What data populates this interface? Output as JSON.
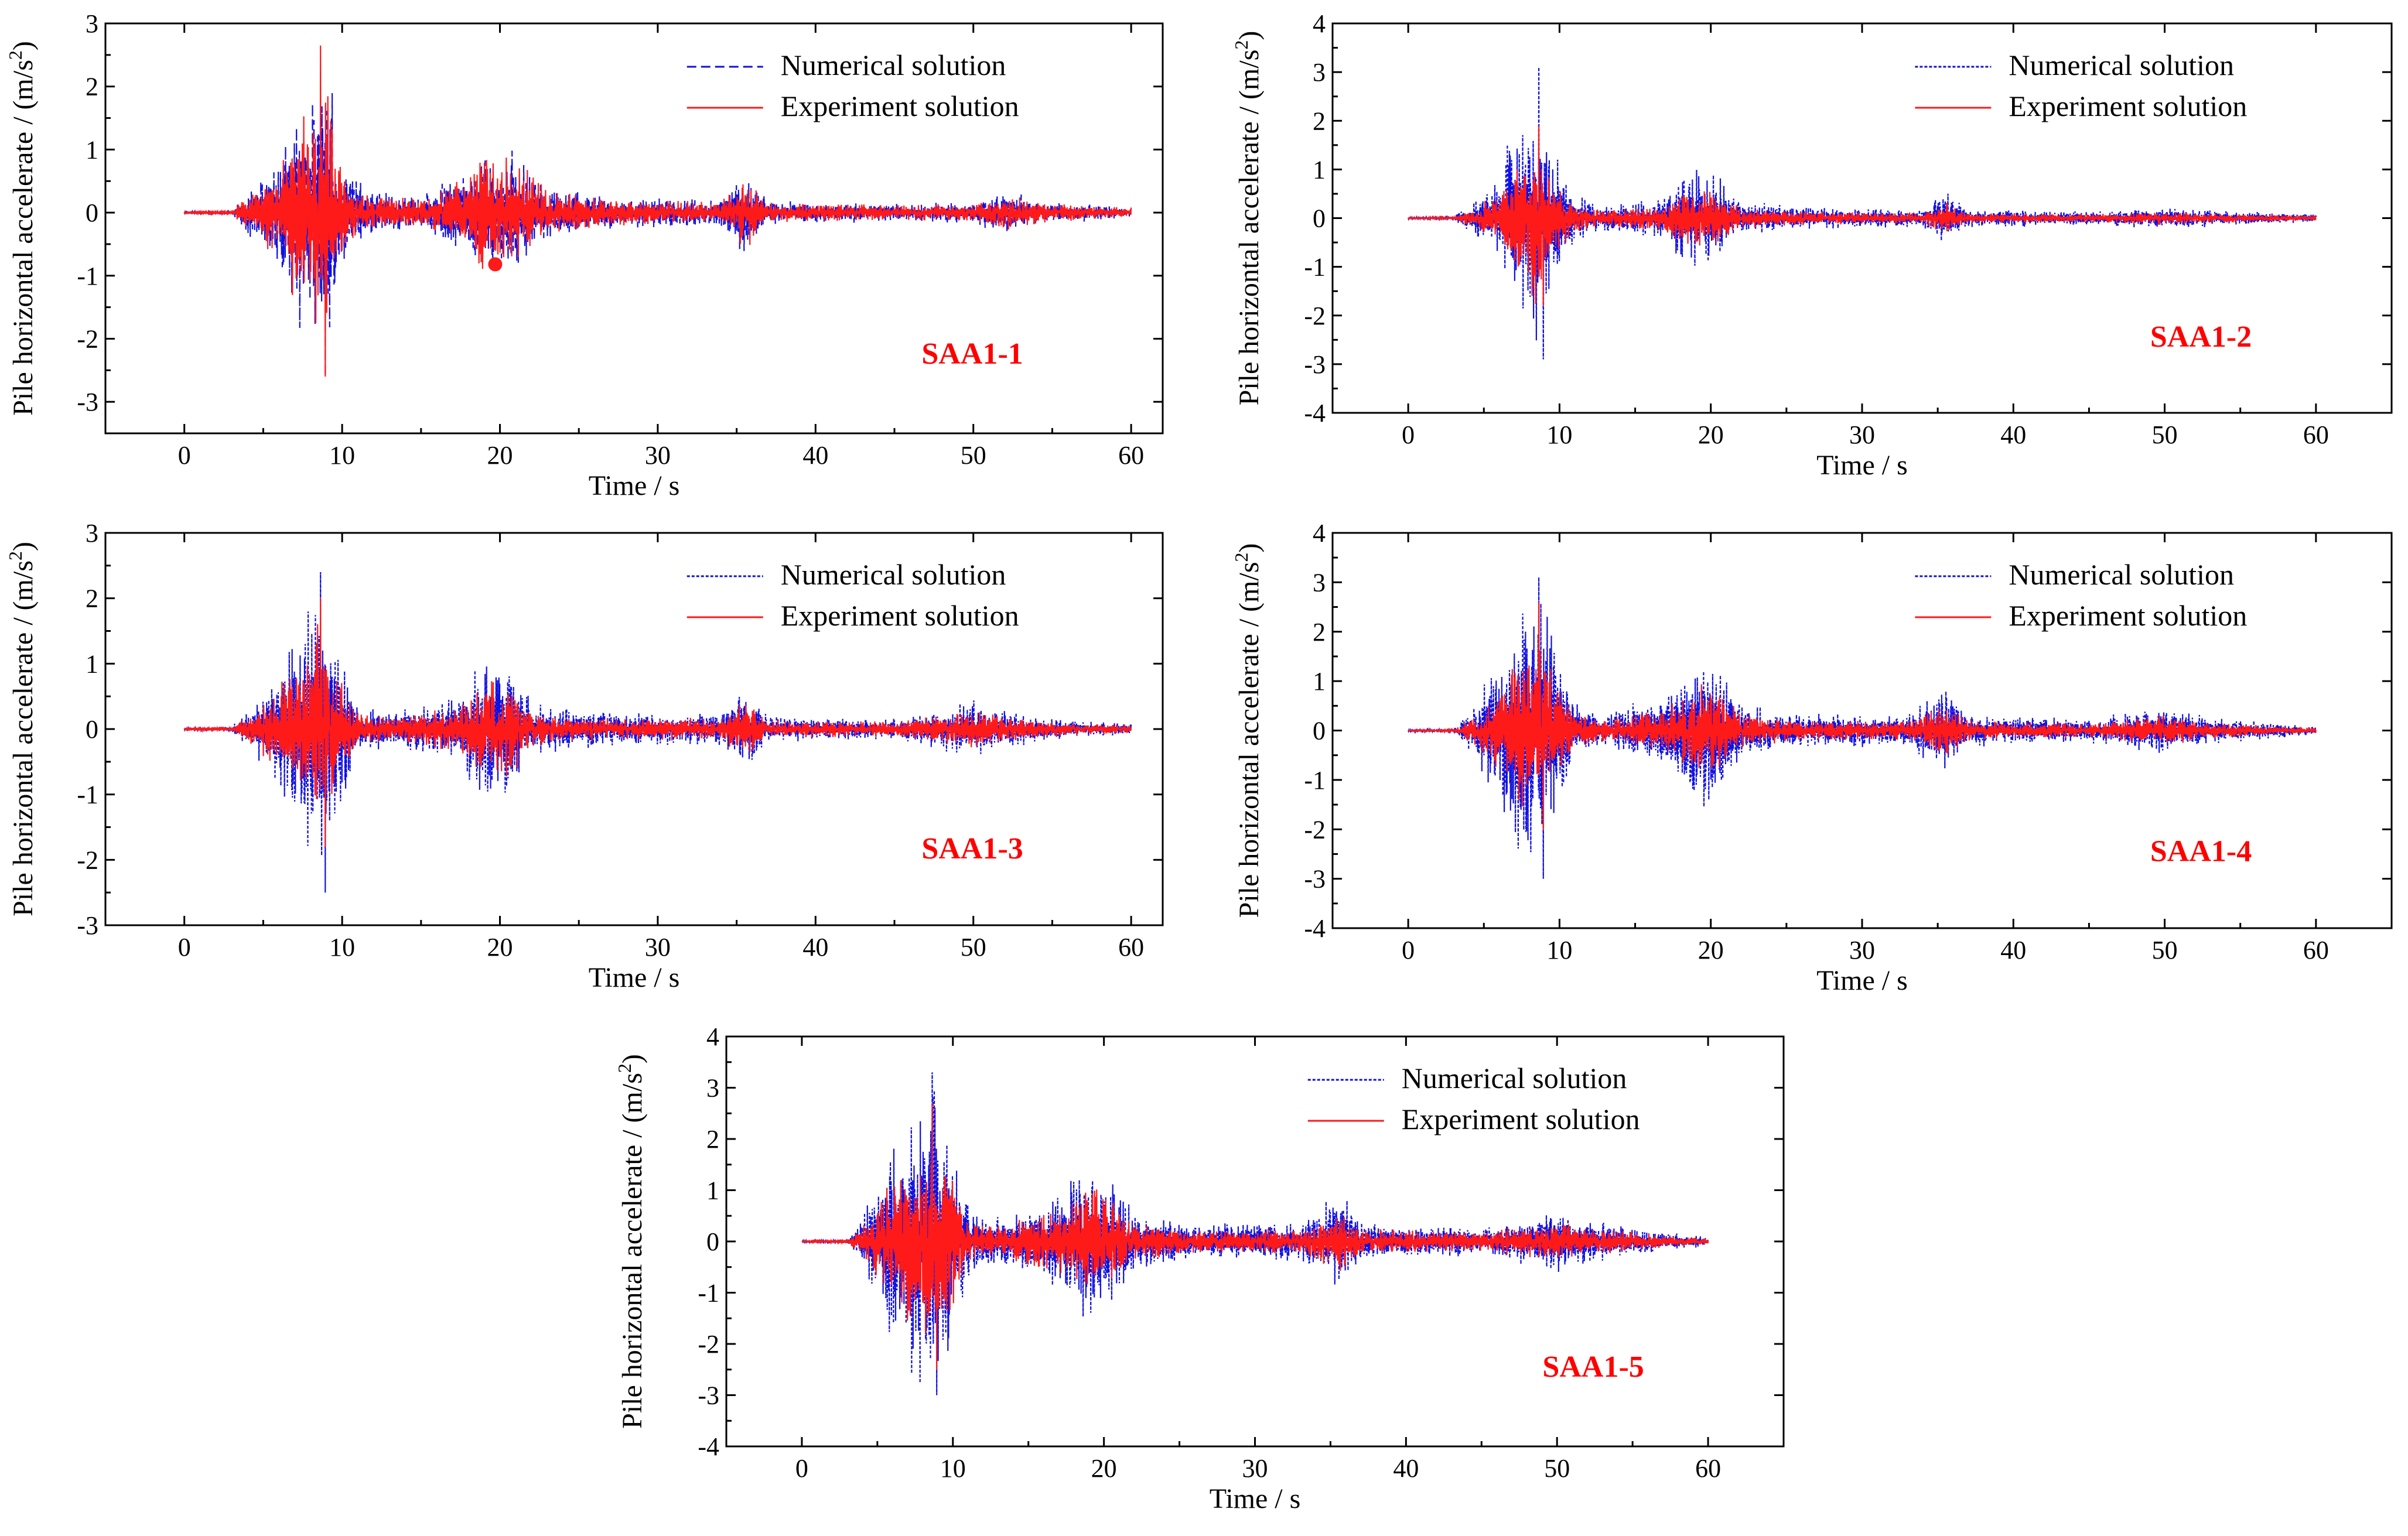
{
  "colors": {
    "numerical": "#1010e0",
    "experiment": "#ff1a1a",
    "label": "#ff0000",
    "axis": "#000000"
  },
  "legend": {
    "numerical": "Numerical solution",
    "experiment": "Experiment solution"
  },
  "chart_data": [
    {
      "type": "line",
      "panel_label": "SAA1-1",
      "xlabel": "Time / s",
      "ylabel_main": "Pile horizontal accelerate / (m/s",
      "ylabel_sup": "2",
      "ylabel_close": ")",
      "xlim": [
        -5,
        62
      ],
      "ylim": [
        -3.5,
        3
      ],
      "xticks": [
        0,
        10,
        20,
        30,
        40,
        50,
        60
      ],
      "yticks": [
        -3,
        -2,
        -1,
        0,
        1,
        2,
        3
      ],
      "numerical_dash": "dashed",
      "envelope": [
        [
          0,
          0.02
        ],
        [
          3,
          0.03
        ],
        [
          4,
          0.35
        ],
        [
          6,
          0.9
        ],
        [
          7,
          2.0
        ],
        [
          8,
          1.9
        ],
        [
          9,
          2.6
        ],
        [
          10,
          0.8
        ],
        [
          12,
          0.35
        ],
        [
          15,
          0.3
        ],
        [
          18,
          0.7
        ],
        [
          19,
          1.2
        ],
        [
          20,
          1.0
        ],
        [
          21,
          1.1
        ],
        [
          23,
          0.45
        ],
        [
          26,
          0.3
        ],
        [
          30,
          0.25
        ],
        [
          34,
          0.22
        ],
        [
          35.5,
          0.75
        ],
        [
          37,
          0.2
        ],
        [
          45,
          0.15
        ],
        [
          50,
          0.18
        ],
        [
          52,
          0.35
        ],
        [
          55,
          0.18
        ],
        [
          60,
          0.1
        ]
      ],
      "ratio": 0.85,
      "marker": {
        "x": 19.7,
        "y": -0.82
      },
      "series": [
        {
          "name": "Numerical solution",
          "peak_max": 2.0,
          "peak_min": -2.6
        },
        {
          "name": "Experiment solution",
          "peak_max": 2.65,
          "peak_min": -2.6
        }
      ]
    },
    {
      "type": "line",
      "panel_label": "SAA1-2",
      "xlabel": "Time / s",
      "ylabel_main": "Pile horizontal accelerate / (m/s",
      "ylabel_sup": "2",
      "ylabel_close": ")",
      "xlim": [
        -5,
        65
      ],
      "ylim": [
        -4,
        4
      ],
      "xticks": [
        0,
        10,
        20,
        30,
        40,
        50,
        60
      ],
      "yticks": [
        -4,
        -3,
        -2,
        -1,
        0,
        1,
        2,
        3,
        4
      ],
      "numerical_dash": "dotted",
      "envelope": [
        [
          0,
          0.02
        ],
        [
          3,
          0.04
        ],
        [
          4,
          0.3
        ],
        [
          6,
          1.0
        ],
        [
          7.5,
          2.5
        ],
        [
          8.5,
          3.1
        ],
        [
          9.5,
          1.5
        ],
        [
          11,
          0.5
        ],
        [
          13,
          0.3
        ],
        [
          17,
          0.45
        ],
        [
          18,
          1.0
        ],
        [
          20,
          1.1
        ],
        [
          22,
          0.4
        ],
        [
          26,
          0.25
        ],
        [
          34,
          0.2
        ],
        [
          35.5,
          0.6
        ],
        [
          37,
          0.2
        ],
        [
          45,
          0.15
        ],
        [
          50,
          0.25
        ],
        [
          55,
          0.15
        ],
        [
          60,
          0.1
        ]
      ],
      "ratio": 0.6,
      "series": [
        {
          "name": "Numerical solution",
          "peak_max": 3.1,
          "peak_min": -2.9
        },
        {
          "name": "Experiment solution",
          "peak_max": 1.9,
          "peak_min": -1.8
        }
      ]
    },
    {
      "type": "line",
      "panel_label": "SAA1-3",
      "xlabel": "Time / s",
      "ylabel_main": "Pile horizontal accelerate / (m/s",
      "ylabel_sup": "2",
      "ylabel_close": ")",
      "xlim": [
        -5,
        62
      ],
      "ylim": [
        -3,
        3
      ],
      "xticks": [
        0,
        10,
        20,
        30,
        40,
        50,
        60
      ],
      "yticks": [
        -3,
        -2,
        -1,
        0,
        1,
        2,
        3
      ],
      "numerical_dash": "dotted",
      "envelope": [
        [
          0,
          0.02
        ],
        [
          3,
          0.04
        ],
        [
          4,
          0.3
        ],
        [
          6,
          1.0
        ],
        [
          7.5,
          1.9
        ],
        [
          8.5,
          2.4
        ],
        [
          9.5,
          1.6
        ],
        [
          11,
          0.4
        ],
        [
          13,
          0.3
        ],
        [
          17,
          0.5
        ],
        [
          18.5,
          1.0
        ],
        [
          20,
          1.2
        ],
        [
          21,
          1.0
        ],
        [
          22,
          0.4
        ],
        [
          26,
          0.3
        ],
        [
          34,
          0.25
        ],
        [
          35.5,
          0.7
        ],
        [
          37,
          0.2
        ],
        [
          45,
          0.18
        ],
        [
          50,
          0.45
        ],
        [
          52,
          0.3
        ],
        [
          56,
          0.15
        ],
        [
          60,
          0.1
        ]
      ],
      "ratio": 0.7,
      "series": [
        {
          "name": "Numerical solution",
          "peak_max": 2.4,
          "peak_min": -2.5
        },
        {
          "name": "Experiment solution",
          "peak_max": 2.0,
          "peak_min": -1.8
        }
      ]
    },
    {
      "type": "line",
      "panel_label": "SAA1-4",
      "xlabel": "Time / s",
      "ylabel_main": "Pile horizontal accelerate / (m/s",
      "ylabel_sup": "2",
      "ylabel_close": ")",
      "xlim": [
        -5,
        65
      ],
      "ylim": [
        -4,
        4
      ],
      "xticks": [
        0,
        10,
        20,
        30,
        40,
        50,
        60
      ],
      "yticks": [
        -4,
        -3,
        -2,
        -1,
        0,
        1,
        2,
        3,
        4
      ],
      "numerical_dash": "dotted",
      "envelope": [
        [
          0,
          0.02
        ],
        [
          3,
          0.04
        ],
        [
          4,
          0.4
        ],
        [
          6,
          1.5
        ],
        [
          7.5,
          2.8
        ],
        [
          8.5,
          3.0
        ],
        [
          9.5,
          2.6
        ],
        [
          11,
          0.6
        ],
        [
          13,
          0.4
        ],
        [
          17,
          0.8
        ],
        [
          19,
          1.6
        ],
        [
          20.5,
          1.7
        ],
        [
          22,
          0.6
        ],
        [
          26,
          0.35
        ],
        [
          33,
          0.35
        ],
        [
          35.5,
          1.0
        ],
        [
          37,
          0.35
        ],
        [
          45,
          0.25
        ],
        [
          50,
          0.55
        ],
        [
          52,
          0.35
        ],
        [
          56,
          0.2
        ],
        [
          60,
          0.1
        ]
      ],
      "ratio": 0.6,
      "series": [
        {
          "name": "Numerical solution",
          "peak_max": 3.1,
          "peak_min": -3.0
        },
        {
          "name": "Experiment solution",
          "peak_max": 2.6,
          "peak_min": -2.0
        }
      ]
    },
    {
      "type": "line",
      "panel_label": "SAA1-5",
      "xlabel": "Time / s",
      "ylabel_main": "Pile horizontal accelerate / (m/s",
      "ylabel_sup": "2",
      "ylabel_close": ")",
      "xlim": [
        -5,
        65
      ],
      "ylim": [
        -4,
        4
      ],
      "xticks": [
        0,
        10,
        20,
        30,
        40,
        50,
        60
      ],
      "yticks": [
        -4,
        -3,
        -2,
        -1,
        0,
        1,
        2,
        3,
        4
      ],
      "numerical_dash": "dotted",
      "envelope": [
        [
          0,
          0.02
        ],
        [
          3,
          0.04
        ],
        [
          4,
          0.5
        ],
        [
          6,
          2.0
        ],
        [
          7.5,
          3.0
        ],
        [
          8.5,
          3.3
        ],
        [
          9.5,
          3.0
        ],
        [
          11,
          0.7
        ],
        [
          13,
          0.5
        ],
        [
          17,
          1.0
        ],
        [
          19,
          1.8
        ],
        [
          20.5,
          1.6
        ],
        [
          22,
          0.6
        ],
        [
          26,
          0.35
        ],
        [
          33,
          0.4
        ],
        [
          35.5,
          1.1
        ],
        [
          37,
          0.4
        ],
        [
          45,
          0.3
        ],
        [
          50,
          0.65
        ],
        [
          52,
          0.45
        ],
        [
          56,
          0.25
        ],
        [
          60,
          0.1
        ]
      ],
      "ratio": 0.65,
      "series": [
        {
          "name": "Numerical solution",
          "peak_max": 3.3,
          "peak_min": -3.0
        },
        {
          "name": "Experiment solution",
          "peak_max": 2.7,
          "peak_min": -2.5
        }
      ]
    }
  ]
}
